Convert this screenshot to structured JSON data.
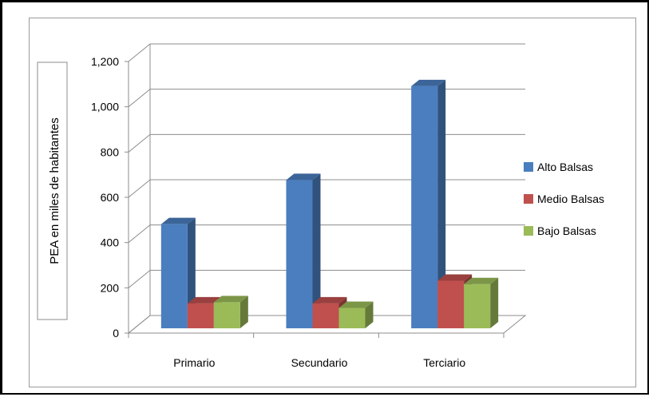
{
  "chart_data": {
    "type": "bar",
    "title": "",
    "xlabel": "",
    "ylabel": "PEA en miles de  habitantes",
    "categories": [
      "Primario",
      "Secundario",
      "Terciario"
    ],
    "series": [
      {
        "name": "Alto Balsas",
        "values": [
          460,
          655,
          1070
        ],
        "color": "#4a7ebf"
      },
      {
        "name": "Medio Balsas",
        "values": [
          110,
          110,
          210
        ],
        "color": "#c0504d"
      },
      {
        "name": "Bajo Balsas",
        "values": [
          115,
          90,
          195
        ],
        "color": "#9bbb59"
      }
    ],
    "ylim": [
      0,
      1200
    ],
    "yticks": [
      0,
      200,
      400,
      600,
      800,
      1000,
      1200
    ],
    "ytick_labels": [
      "0",
      "200",
      "400",
      "600",
      "800",
      "1,000",
      "1,200"
    ],
    "grid": true,
    "legend": "right",
    "style": "3d-clustered-column"
  }
}
